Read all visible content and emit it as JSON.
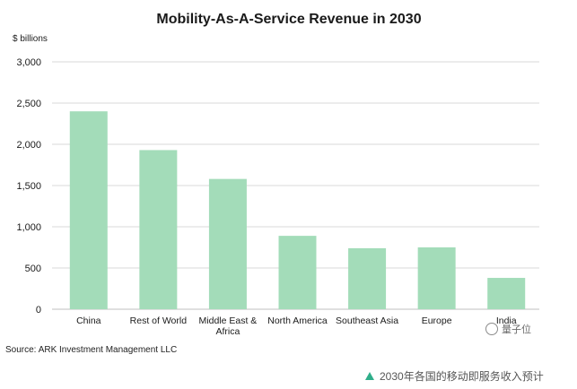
{
  "chart_data": {
    "type": "bar",
    "title": "Mobility-As-A-Service Revenue in 2030",
    "ylabel": "$ billions",
    "xlabel": "",
    "ylim": [
      0,
      3000
    ],
    "yticks": [
      0,
      500,
      1000,
      1500,
      2000,
      2500,
      3000
    ],
    "ytick_labels": [
      "0",
      "500",
      "1,000",
      "1,500",
      "2,000",
      "2,500",
      "3,000"
    ],
    "categories": [
      "China",
      "Rest of World",
      "Middle East & Africa",
      "North America",
      "Southeast Asia",
      "Europe",
      "India"
    ],
    "values": [
      2400,
      1930,
      1580,
      890,
      740,
      750,
      380
    ],
    "grid": true,
    "bar_color": "#a3dcb9",
    "grid_color": "#d9d9d9"
  },
  "source": "Source: ARK Investment Management LLC",
  "watermark": {
    "text": "量子位",
    "icon": "qbitai-logo"
  },
  "caption": {
    "icon": "triangle-icon",
    "text": "2030年各国的移动即服务收入预计"
  }
}
